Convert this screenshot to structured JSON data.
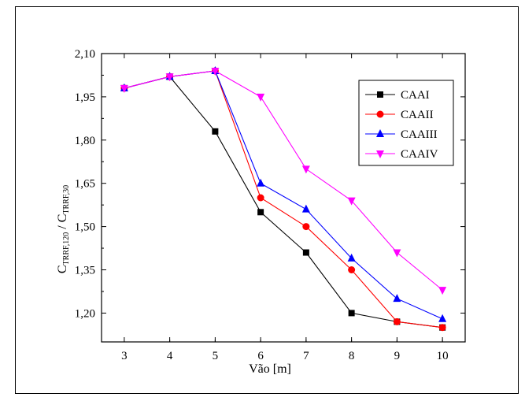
{
  "chart_data": {
    "type": "line",
    "xlabel": "Vão [m]",
    "ylabel": {
      "main1": "C",
      "sub1": "TRRF,120",
      "sep": " / C",
      "sub2": "TRRF,30"
    },
    "x": [
      3,
      4,
      5,
      6,
      7,
      8,
      9,
      10
    ],
    "x_ticks": [
      "3",
      "4",
      "5",
      "6",
      "7",
      "8",
      "9",
      "10"
    ],
    "xlim": [
      2.5,
      10.5
    ],
    "ylim": [
      1.1,
      2.1
    ],
    "y_ticks": [
      "2,10",
      "1,95",
      "1,80",
      "1,65",
      "1,50",
      "1,35",
      "1,20"
    ],
    "y_tick_values": [
      2.1,
      1.95,
      1.8,
      1.65,
      1.5,
      1.35,
      1.2
    ],
    "grid": false,
    "legend_position": "top-right",
    "series": [
      {
        "name": "CAAI",
        "color": "#000000",
        "marker": "square",
        "values": [
          1.98,
          2.02,
          1.83,
          1.55,
          1.41,
          1.2,
          1.17,
          1.15
        ]
      },
      {
        "name": "CAAII",
        "color": "#ff0000",
        "marker": "circle",
        "values": [
          1.98,
          2.02,
          2.04,
          1.6,
          1.5,
          1.35,
          1.17,
          1.15
        ]
      },
      {
        "name": "CAAIII",
        "color": "#0000ff",
        "marker": "triangle-up",
        "values": [
          1.98,
          2.02,
          2.04,
          1.65,
          1.56,
          1.39,
          1.25,
          1.18
        ]
      },
      {
        "name": "CAAIV",
        "color": "#ff00ff",
        "marker": "triangle-down",
        "values": [
          1.98,
          2.02,
          2.04,
          1.95,
          1.7,
          1.59,
          1.41,
          1.28
        ]
      }
    ]
  }
}
